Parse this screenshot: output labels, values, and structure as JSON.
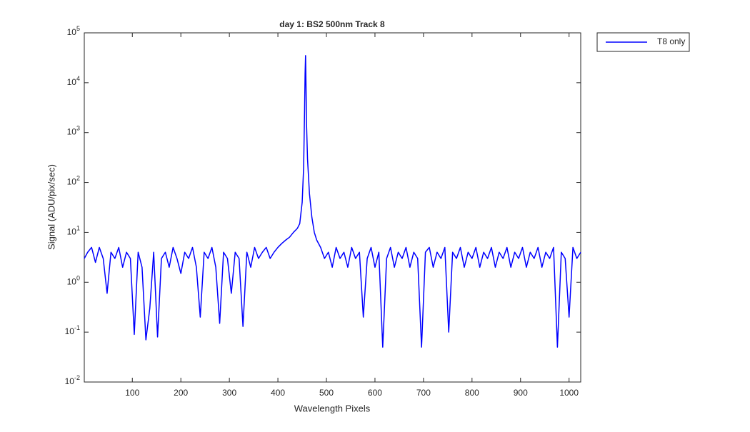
{
  "chart_data": {
    "type": "line",
    "title": "day 1: BS2  500nm  Track 8",
    "xlabel": "Wavelength Pixels",
    "ylabel": "Signal (ADU/pix/sec)",
    "x": [
      1,
      8,
      16,
      24,
      32,
      40,
      48,
      56,
      64,
      72,
      80,
      88,
      96,
      104,
      112,
      120,
      128,
      136,
      144,
      152,
      160,
      168,
      176,
      184,
      192,
      200,
      208,
      216,
      224,
      232,
      240,
      248,
      256,
      264,
      272,
      280,
      288,
      296,
      304,
      312,
      320,
      328,
      336,
      344,
      352,
      360,
      368,
      376,
      384,
      392,
      400,
      408,
      416,
      424,
      432,
      440,
      445,
      450,
      453,
      455,
      456,
      457,
      458,
      459,
      461,
      465,
      470,
      475,
      480,
      488,
      496,
      504,
      512,
      520,
      528,
      536,
      544,
      552,
      560,
      568,
      576,
      584,
      592,
      600,
      608,
      616,
      624,
      632,
      640,
      648,
      656,
      664,
      672,
      680,
      688,
      696,
      704,
      712,
      720,
      728,
      736,
      744,
      752,
      760,
      768,
      776,
      784,
      792,
      800,
      808,
      816,
      824,
      832,
      840,
      848,
      856,
      864,
      872,
      880,
      888,
      896,
      904,
      912,
      920,
      928,
      936,
      944,
      952,
      960,
      968,
      976,
      984,
      992,
      1000,
      1008,
      1016,
      1024
    ],
    "series": [
      {
        "name": "T8 only",
        "color": "#0000ff",
        "values": [
          3,
          4,
          5,
          2.5,
          5,
          3,
          0.6,
          4,
          3,
          5,
          2,
          4,
          3,
          0.09,
          4,
          2,
          0.07,
          0.3,
          4,
          0.08,
          3,
          4,
          2,
          5,
          3,
          1.5,
          4,
          3,
          5,
          2,
          0.2,
          4,
          3,
          5,
          2,
          0.15,
          4,
          3,
          0.6,
          4,
          3,
          0.13,
          4,
          2,
          5,
          3,
          4,
          5,
          3,
          4,
          5,
          6,
          7,
          8,
          10,
          12,
          15,
          40,
          200,
          3000,
          15000,
          35000,
          8000,
          1500,
          300,
          60,
          20,
          10,
          7,
          5,
          3,
          4,
          2,
          5,
          3,
          4,
          2,
          5,
          3,
          4,
          0.2,
          3,
          5,
          2,
          4,
          0.05,
          3,
          5,
          2,
          4,
          3,
          5,
          2,
          4,
          3,
          0.05,
          4,
          5,
          2,
          4,
          3,
          5,
          0.1,
          4,
          3,
          5,
          2,
          4,
          3,
          5,
          2,
          4,
          3,
          5,
          2,
          4,
          3,
          5,
          2,
          4,
          3,
          5,
          2,
          4,
          3,
          5,
          2,
          4,
          3,
          5,
          0.05,
          4,
          3,
          0.2,
          5,
          3,
          4
        ]
      }
    ],
    "xlim": [
      1,
      1024
    ],
    "xticks": [
      100,
      200,
      300,
      400,
      500,
      600,
      700,
      800,
      900,
      1000
    ],
    "ylim": [
      0.01,
      100000
    ],
    "yscale": "log",
    "yticks": [
      {
        "value": 0.01,
        "label": "10^-2"
      },
      {
        "value": 0.1,
        "label": "10^-1"
      },
      {
        "value": 1,
        "label": "10^0"
      },
      {
        "value": 10,
        "label": "10^1"
      },
      {
        "value": 100,
        "label": "10^2"
      },
      {
        "value": 1000,
        "label": "10^3"
      },
      {
        "value": 10000,
        "label": "10^4"
      },
      {
        "value": 100000,
        "label": "10^5"
      }
    ],
    "legend": "northeastoutside"
  }
}
